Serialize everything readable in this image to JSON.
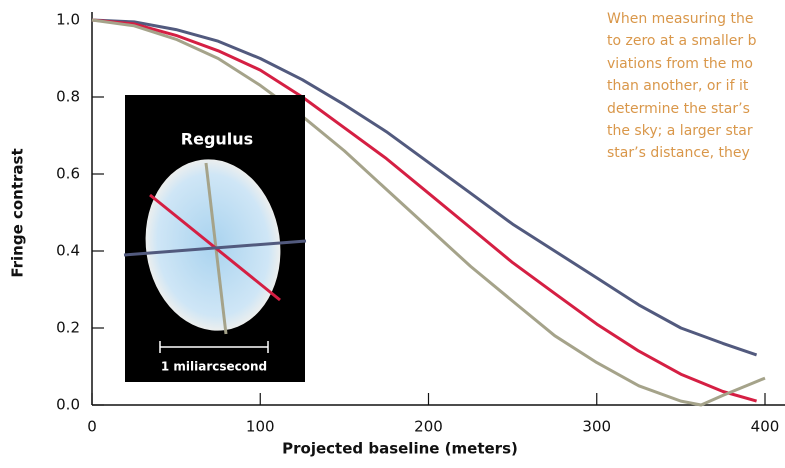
{
  "chart_data": {
    "type": "line",
    "x_label": "Projected baseline (meters)",
    "y_label": "Fringe contrast",
    "xlim": [
      0,
      400
    ],
    "ylim": [
      0,
      1
    ],
    "xticks": [
      0,
      100,
      200,
      300,
      400
    ],
    "yticks": [
      {
        "value": 0,
        "label": "0.0"
      },
      0.2,
      0.4,
      0.6,
      0.8,
      {
        "value": 1,
        "label": "1.0"
      }
    ],
    "inset_title": "Regulus",
    "scale_label": "1 miliarcsecond",
    "note_lines": [
      "When measuring the",
      "to zero at a smaller b",
      "viations from the mo",
      "than another, or if it",
      "determine the star’s",
      "the sky; a larger star",
      "star’s distance, they"
    ],
    "series": [
      {
        "color": "#525a7e",
        "x": [
          0,
          25,
          50,
          75,
          100,
          125,
          150,
          175,
          200,
          225,
          250,
          275,
          300,
          325,
          350,
          375,
          395
        ],
        "values": [
          1,
          0.995,
          0.975,
          0.945,
          0.9,
          0.845,
          0.78,
          0.71,
          0.63,
          0.55,
          0.47,
          0.4,
          0.33,
          0.26,
          0.2,
          0.16,
          0.13
        ]
      },
      {
        "color": "#d51f43",
        "x": [
          0,
          25,
          50,
          75,
          100,
          125,
          150,
          175,
          200,
          225,
          250,
          275,
          300,
          325,
          350,
          375,
          395
        ],
        "values": [
          1,
          0.99,
          0.96,
          0.92,
          0.87,
          0.8,
          0.72,
          0.64,
          0.55,
          0.46,
          0.37,
          0.29,
          0.21,
          0.14,
          0.08,
          0.035,
          0.01
        ]
      },
      {
        "color": "#a5a38a",
        "x": [
          0,
          25,
          50,
          75,
          100,
          125,
          150,
          175,
          200,
          225,
          250,
          275,
          300,
          325,
          350,
          362,
          375,
          400
        ],
        "values": [
          1,
          0.985,
          0.95,
          0.9,
          0.83,
          0.75,
          0.66,
          0.56,
          0.46,
          0.36,
          0.27,
          0.18,
          0.11,
          0.05,
          0.01,
          0,
          0.025,
          0.07
        ]
      }
    ]
  }
}
